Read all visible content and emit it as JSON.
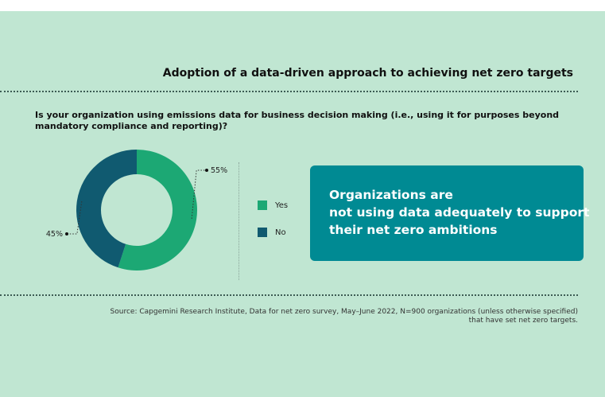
{
  "title": "Adoption of a data-driven approach to achieving net zero targets",
  "question": "Is your organization using emissions data for business decision making (i.e., using it for purposes beyond mandatory compliance and reporting)?",
  "callout": {
    "lines": [
      "Organizations are",
      "not using data adequately to support",
      "their net zero ambitions"
    ]
  },
  "source": "Source: Capgemini Research Institute, Data for net zero survey, May–June 2022, N=900 organizations (unless otherwise specified) that have set net zero targets.",
  "colors": {
    "yes": "#1ca874",
    "no": "#105a70",
    "background": "#c0e6d2",
    "callout": "#008a93"
  },
  "chart_data": {
    "type": "pie",
    "variant": "donut",
    "title": "Adoption of a data-driven approach to achieving net zero targets",
    "categories": [
      "Yes",
      "No"
    ],
    "values": [
      55,
      45
    ],
    "data_labels": [
      "55%",
      "45%"
    ],
    "legend": [
      "Yes",
      "No"
    ],
    "legend_position": "right"
  }
}
